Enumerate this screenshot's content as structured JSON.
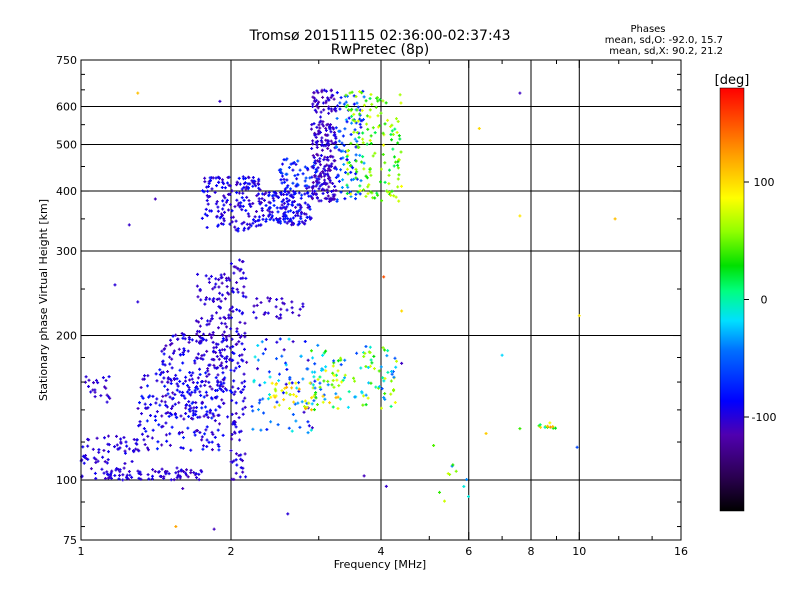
{
  "header": {
    "title": "Tromsø 20151115 02:36:00-02:37:43",
    "subtitle": "RwPretec (8p)"
  },
  "phase_panel": {
    "title": "Phases",
    "line_o": "mean, sd,O: -92.0, 15.7",
    "line_x": "mean, sd,X:  90.2, 21.2"
  },
  "colorbar": {
    "unit_label": "[deg]",
    "ticks": [
      {
        "value": 100,
        "label": "100"
      },
      {
        "value": 0,
        "label": "0"
      },
      {
        "value": -100,
        "label": "-100"
      }
    ],
    "range": [
      -180,
      180
    ]
  },
  "chart_data": {
    "type": "scatter",
    "xlabel": "Frequency [MHz]",
    "ylabel": "Stationary phase Virtual Height [km]",
    "xscale": "log",
    "yscale": "log",
    "xlim": [
      1,
      16
    ],
    "ylim": [
      75,
      750
    ],
    "xticks": [
      {
        "value": 1,
        "label": "1"
      },
      {
        "value": 2,
        "label": "2"
      },
      {
        "value": 4,
        "label": "4"
      },
      {
        "value": 6,
        "label": "6"
      },
      {
        "value": 8,
        "label": "8"
      },
      {
        "value": 10,
        "label": "10"
      },
      {
        "value": 16,
        "label": "16"
      }
    ],
    "xgrid": [
      2,
      4,
      6,
      8,
      10
    ],
    "xminor": [
      3,
      5,
      7,
      9,
      12,
      14
    ],
    "yticks": [
      {
        "value": 75,
        "label": "75"
      },
      {
        "value": 100,
        "label": "100"
      },
      {
        "value": 200,
        "label": "200"
      },
      {
        "value": 300,
        "label": "300"
      },
      {
        "value": 400,
        "label": "400"
      },
      {
        "value": 500,
        "label": "500"
      },
      {
        "value": 600,
        "label": "600"
      },
      {
        "value": 750,
        "label": "750"
      }
    ],
    "ygrid": [
      100,
      200,
      300,
      400,
      500,
      600
    ],
    "yminor": [
      80,
      90,
      120,
      140,
      160,
      180,
      250,
      350,
      450,
      550,
      650,
      700
    ],
    "grid": true,
    "color_dimension": "phase [deg]",
    "clusters": [
      {
        "f": [
          1.0,
          1.75
        ],
        "h": [
          100,
          106
        ],
        "n": 90,
        "phase": [
          -112,
          -90
        ]
      },
      {
        "f": [
          1.0,
          1.3
        ],
        "h": [
          108,
          125
        ],
        "n": 55,
        "phase": [
          -110,
          -88
        ]
      },
      {
        "f": [
          1.02,
          1.15
        ],
        "h": [
          145,
          165
        ],
        "n": 22,
        "phase": [
          -110,
          -92
        ]
      },
      {
        "f": [
          1.3,
          1.95
        ],
        "h": [
          115,
          170
        ],
        "n": 190,
        "phase": [
          -112,
          -72
        ]
      },
      {
        "f": [
          1.45,
          2.05
        ],
        "h": [
          135,
          205
        ],
        "n": 160,
        "phase": [
          -112,
          -82
        ]
      },
      {
        "f": [
          1.7,
          2.0
        ],
        "h": [
          170,
          270
        ],
        "n": 120,
        "phase": [
          -112,
          -92
        ]
      },
      {
        "f": [
          2.0,
          2.15
        ],
        "h": [
          100,
          290
        ],
        "n": 110,
        "phase": [
          -112,
          -88
        ]
      },
      {
        "f": [
          1.75,
          2.3
        ],
        "h": [
          330,
          430
        ],
        "n": 170,
        "phase": [
          -110,
          -80
        ]
      },
      {
        "f": [
          2.3,
          2.9
        ],
        "h": [
          340,
          400
        ],
        "n": 150,
        "phase": [
          -110,
          -72
        ]
      },
      {
        "f": [
          2.5,
          3.0
        ],
        "h": [
          390,
          470
        ],
        "n": 70,
        "phase": [
          -108,
          -55
        ]
      },
      {
        "f": [
          2.9,
          3.25
        ],
        "h": [
          380,
          650
        ],
        "n": 230,
        "phase": [
          -118,
          -92
        ]
      },
      {
        "f": [
          3.25,
          3.7
        ],
        "h": [
          380,
          650
        ],
        "n": 90,
        "phase": [
          -95,
          -30
        ]
      },
      {
        "f": [
          3.4,
          4.4
        ],
        "h": [
          380,
          650
        ],
        "n": 150,
        "phase": [
          10,
          85
        ]
      },
      {
        "f": [
          2.2,
          3.0
        ],
        "h": [
          125,
          200
        ],
        "n": 80,
        "phase": [
          -110,
          -10
        ]
      },
      {
        "f": [
          2.9,
          4.3
        ],
        "h": [
          140,
          190
        ],
        "n": 120,
        "phase": [
          -60,
          90
        ]
      },
      {
        "f": [
          2.4,
          3.3
        ],
        "h": [
          140,
          160
        ],
        "n": 40,
        "phase": [
          60,
          120
        ]
      },
      {
        "f": [
          2.2,
          2.8
        ],
        "h": [
          215,
          240
        ],
        "n": 30,
        "phase": [
          -110,
          -95
        ]
      },
      {
        "f": [
          5.0,
          6.0
        ],
        "h": [
          90,
          115
        ],
        "n": 10,
        "phase": [
          -40,
          90
        ]
      },
      {
        "f": [
          8.3,
          9.1
        ],
        "h": [
          128,
          132
        ],
        "n": 12,
        "phase": [
          -10,
          140
        ]
      }
    ],
    "isolated_points": [
      {
        "f": 1.3,
        "h": 640,
        "phase": 110
      },
      {
        "f": 1.9,
        "h": 615,
        "phase": -105
      },
      {
        "f": 1.25,
        "h": 340,
        "phase": -105
      },
      {
        "f": 1.41,
        "h": 385,
        "phase": -110
      },
      {
        "f": 1.17,
        "h": 255,
        "phase": -100
      },
      {
        "f": 1.3,
        "h": 235,
        "phase": -100
      },
      {
        "f": 7.6,
        "h": 640,
        "phase": -108
      },
      {
        "f": 6.3,
        "h": 540,
        "phase": 100
      },
      {
        "f": 7.6,
        "h": 355,
        "phase": 95
      },
      {
        "f": 11.8,
        "h": 350,
        "phase": 110
      },
      {
        "f": 4.05,
        "h": 265,
        "phase": 150
      },
      {
        "f": 4.4,
        "h": 225,
        "phase": 100
      },
      {
        "f": 4.4,
        "h": 175,
        "phase": -108
      },
      {
        "f": 5.1,
        "h": 118,
        "phase": 45
      },
      {
        "f": 6.5,
        "h": 125,
        "phase": 105
      },
      {
        "f": 7.0,
        "h": 182,
        "phase": -20
      },
      {
        "f": 7.6,
        "h": 128,
        "phase": 40
      },
      {
        "f": 9.9,
        "h": 117,
        "phase": -60
      },
      {
        "f": 10.0,
        "h": 220,
        "phase": 95
      },
      {
        "f": 4.1,
        "h": 97,
        "phase": -105
      },
      {
        "f": 3.7,
        "h": 102,
        "phase": -110
      },
      {
        "f": 1.55,
        "h": 80,
        "phase": 120
      },
      {
        "f": 1.85,
        "h": 79,
        "phase": -110
      },
      {
        "f": 2.6,
        "h": 85,
        "phase": -100
      },
      {
        "f": 1.6,
        "h": 96,
        "phase": -110
      }
    ]
  }
}
